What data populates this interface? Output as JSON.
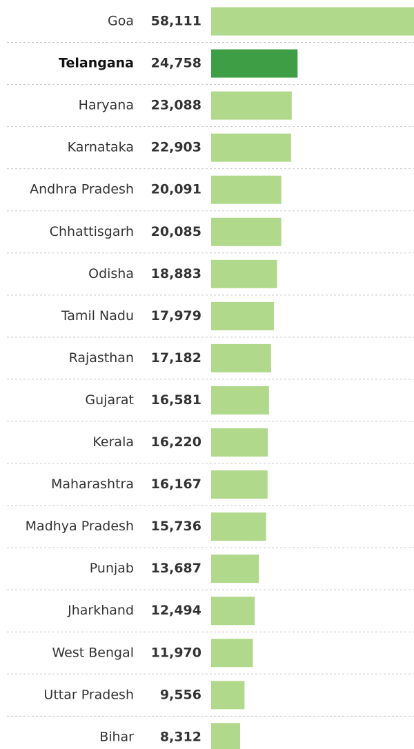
{
  "chart_data": {
    "type": "hbar",
    "categories": [
      "Goa",
      "Telangana",
      "Haryana",
      "Karnataka",
      "Andhra Pradesh",
      "Chhattisgarh",
      "Odisha",
      "Tamil Nadu",
      "Rajasthan",
      "Gujarat",
      "Kerala",
      "Maharashtra",
      "Madhya Pradesh",
      "Punjab",
      "Jharkhand",
      "West Bengal",
      "Uttar Pradesh",
      "Bihar"
    ],
    "values": [
      58111,
      24758,
      23088,
      22903,
      20091,
      20085,
      18883,
      17979,
      17182,
      16581,
      16220,
      16167,
      15736,
      13687,
      12494,
      11970,
      9556,
      8312
    ],
    "value_labels": [
      "58,111",
      "24,758",
      "23,088",
      "22,903",
      "20,091",
      "20,085",
      "18,883",
      "17,979",
      "17,182",
      "16,581",
      "16,220",
      "16,167",
      "15,736",
      "13,687",
      "12,494",
      "11,970",
      "9,556",
      "8,312"
    ],
    "colors": [
      "#b1d98b",
      "#3d9e45",
      "#b1d98b",
      "#b1d98b",
      "#b1d98b",
      "#b1d98b",
      "#b1d98b",
      "#b1d98b",
      "#b1d98b",
      "#b1d98b",
      "#b1d98b",
      "#b1d98b",
      "#b1d98b",
      "#b1d98b",
      "#b1d98b",
      "#b1d98b",
      "#b1d98b",
      "#b1d98b"
    ],
    "highlight": "Telangana"
  }
}
